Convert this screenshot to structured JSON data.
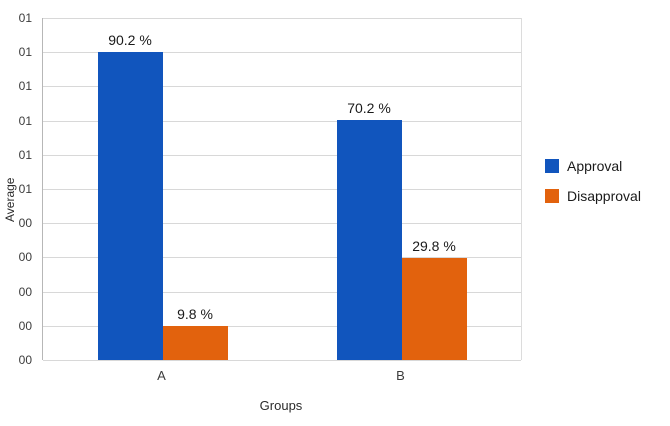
{
  "chart_data": {
    "type": "bar",
    "title": "",
    "xlabel": "Groups",
    "ylabel": "Average",
    "categories": [
      "A",
      "B"
    ],
    "series": [
      {
        "name": "Approval",
        "color": "#1155bd",
        "values": [
          90.2,
          70.2
        ],
        "labels": [
          "90.2 %",
          "70.2 %"
        ]
      },
      {
        "name": "Disapproval",
        "color": "#e2620d",
        "values": [
          9.8,
          29.8
        ],
        "labels": [
          "9.8 %",
          "29.8 %"
        ]
      }
    ],
    "ylim": [
      0,
      100
    ],
    "y_ticks": [
      {
        "value": 100,
        "label": "01"
      },
      {
        "value": 90,
        "label": "01"
      },
      {
        "value": 80,
        "label": "01"
      },
      {
        "value": 70,
        "label": "01"
      },
      {
        "value": 60,
        "label": "01"
      },
      {
        "value": 50,
        "label": "01"
      },
      {
        "value": 40,
        "label": "00"
      },
      {
        "value": 30,
        "label": "00"
      },
      {
        "value": 20,
        "label": "00"
      },
      {
        "value": 10,
        "label": "00"
      },
      {
        "value": 0,
        "label": "00"
      }
    ],
    "legend_position": "right",
    "grid": true
  },
  "colors": {
    "grid": "#d8d8d8",
    "axis": "#b7b7b7",
    "text": "#333333"
  }
}
